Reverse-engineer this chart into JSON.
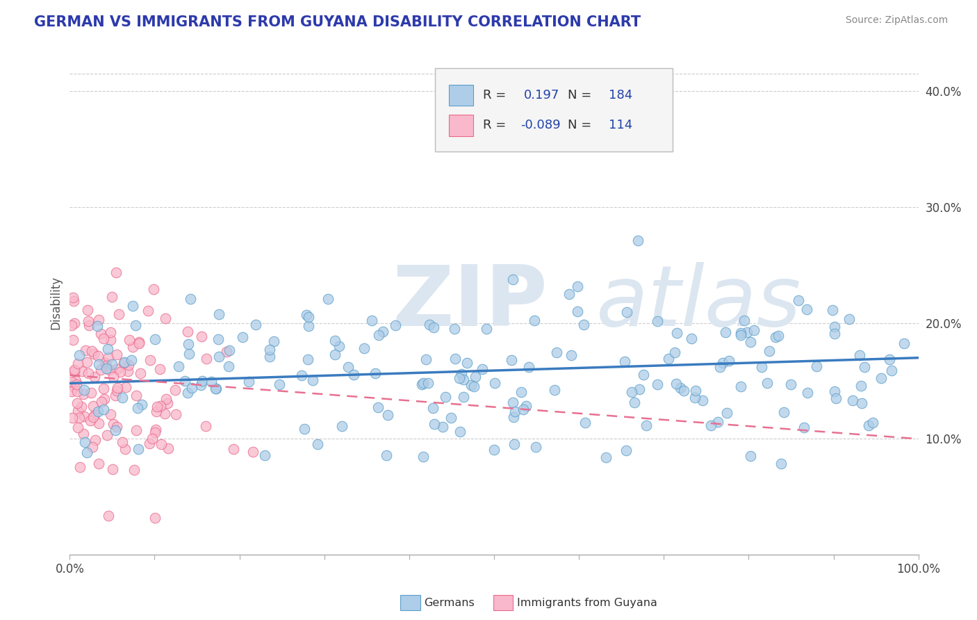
{
  "title": "GERMAN VS IMMIGRANTS FROM GUYANA DISABILITY CORRELATION CHART",
  "source": "Source: ZipAtlas.com",
  "ylabel": "Disability",
  "xlim": [
    0,
    1
  ],
  "ylim": [
    0.0,
    0.435
  ],
  "xticks": [
    0.0,
    0.1,
    0.2,
    0.3,
    0.4,
    0.5,
    0.6,
    0.7,
    0.8,
    0.9,
    1.0
  ],
  "yticks": [
    0.0,
    0.1,
    0.2,
    0.3,
    0.4
  ],
  "ytick_labels": [
    "",
    "10.0%",
    "20.0%",
    "30.0%",
    "40.0%"
  ],
  "blue_R": 0.197,
  "blue_N": 184,
  "pink_R": -0.089,
  "pink_N": 114,
  "blue_dot_face": "#aecde8",
  "blue_dot_edge": "#5b9ec9",
  "pink_dot_face": "#f9b8cb",
  "pink_dot_edge": "#e8698a",
  "background_color": "#ffffff",
  "grid_color": "#cccccc",
  "title_color": "#2d3aab",
  "watermark_color": "#dce6f0",
  "watermark_text": "ZIPatlas",
  "legend_text_color": "#2244aa",
  "label_text_color": "#444444",
  "blue_line_color": "#3a7bbf",
  "pink_line_color": "#e87090",
  "blue_slope": 0.022,
  "blue_intercept": 0.148,
  "pink_slope": -0.055,
  "pink_intercept": 0.155,
  "seed": 7
}
